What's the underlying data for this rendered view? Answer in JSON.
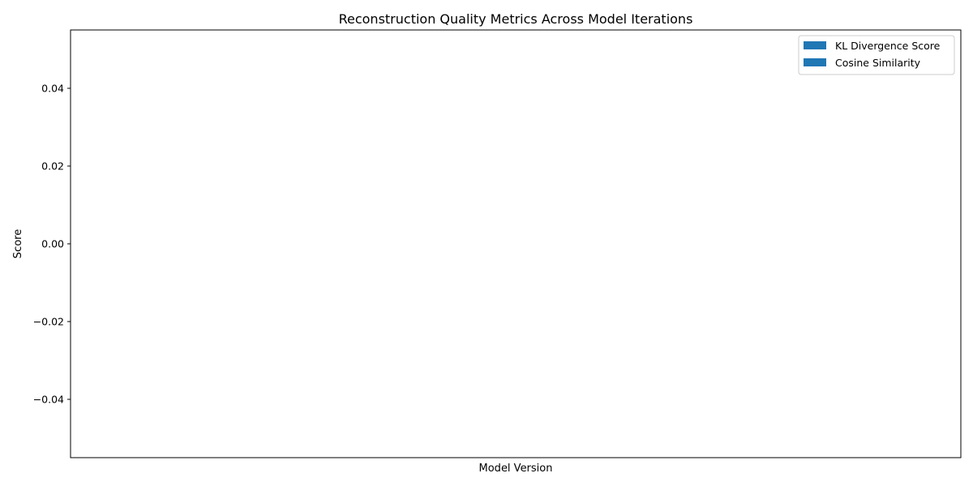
{
  "chart_data": {
    "type": "bar",
    "title": "Reconstruction Quality Metrics Across Model Iterations",
    "xlabel": "Model Version",
    "ylabel": "Score",
    "categories": [],
    "series": [
      {
        "name": "KL Divergence Score",
        "values": [],
        "color": "#1f77b4"
      },
      {
        "name": "Cosine Similarity",
        "values": [],
        "color": "#1f77b4"
      }
    ],
    "ylim": [
      -0.055,
      0.055
    ],
    "yticks": [
      -0.04,
      -0.02,
      0.0,
      0.02,
      0.04
    ],
    "ytick_labels": [
      "−0.04",
      "−0.02",
      "0.00",
      "0.02",
      "0.04"
    ],
    "grid": false,
    "legend_position": "top-right"
  }
}
